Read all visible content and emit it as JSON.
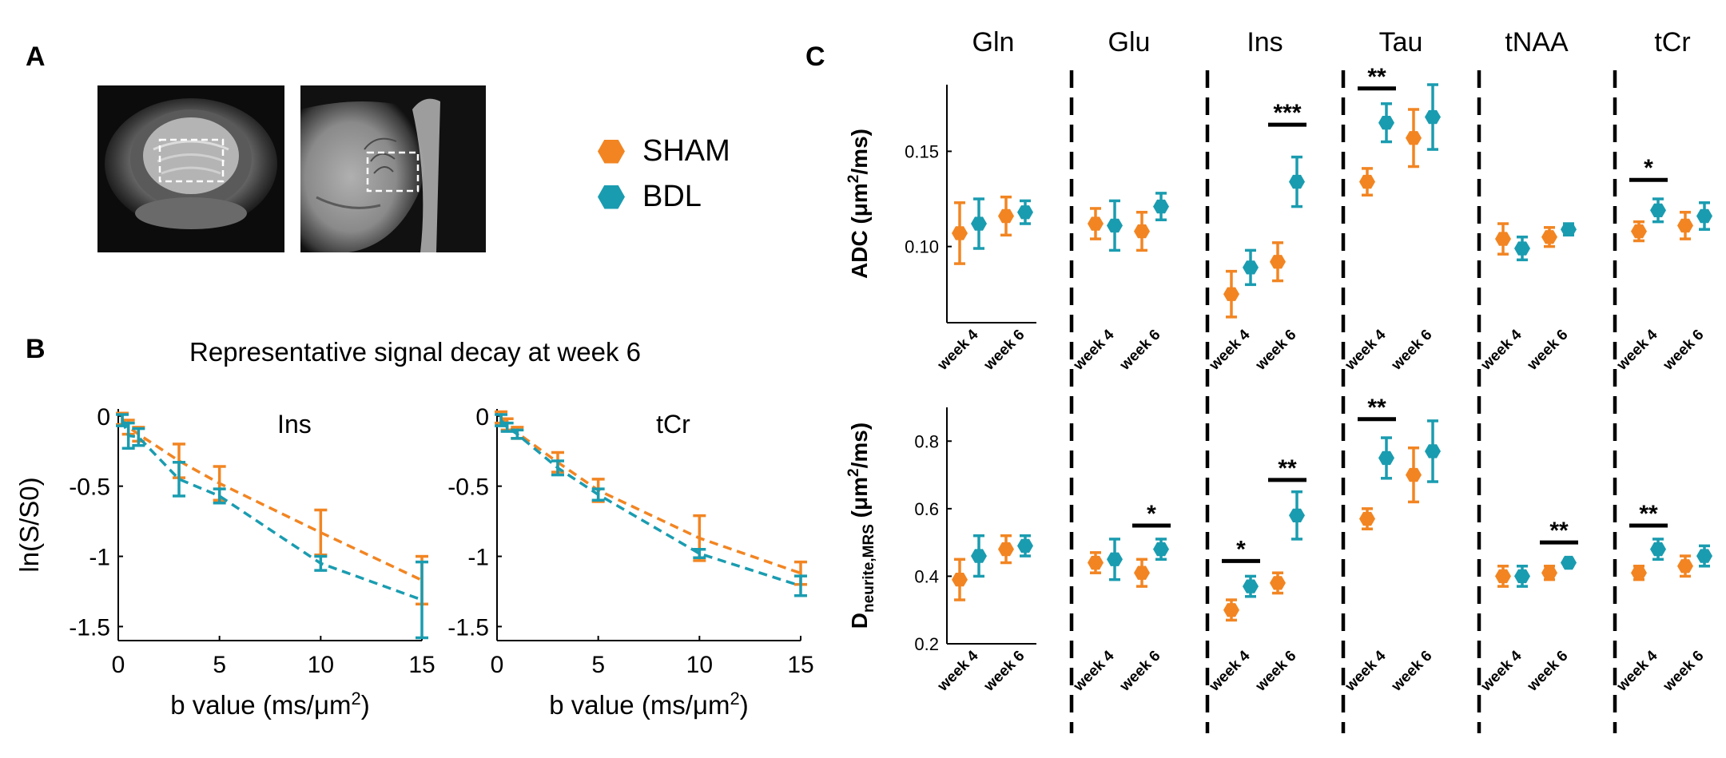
{
  "panel_labels": {
    "a": "A",
    "b": "B",
    "c": "C"
  },
  "legend": [
    {
      "label": "SHAM",
      "color": "#F28522"
    },
    {
      "label": "BDL",
      "color": "#1A9CB0"
    }
  ],
  "colors": {
    "sham": "#F28522",
    "bdl": "#1A9CB0"
  },
  "panel_a": {
    "images": [
      "brain-mri-coronal",
      "brain-mri-sagittal"
    ]
  },
  "panel_b_title": "Representative signal decay at week 6",
  "chart_data": [
    {
      "id": "decay-ins",
      "type": "line",
      "title": "Ins",
      "xlabel": "b value (ms/μm",
      "xlabel_sup": "2",
      "xlabel_end": ")",
      "ylabel": "ln(S/S0)",
      "xlim": [
        0,
        15
      ],
      "ylim": [
        -1.6,
        0.05
      ],
      "xticks": [
        0,
        5,
        10,
        15
      ],
      "xtick_labels": [
        "0",
        "5",
        "10",
        "15"
      ],
      "yticks": [
        0,
        -0.5,
        -1,
        -1.5
      ],
      "ytick_labels": [
        "0",
        "-0.5",
        "-1",
        "-1.5"
      ],
      "x": [
        0.2,
        0.5,
        1,
        3,
        5,
        10,
        15
      ],
      "series": [
        {
          "name": "SHAM",
          "y": [
            -0.02,
            -0.08,
            -0.13,
            -0.32,
            -0.48,
            -0.83,
            -1.17
          ],
          "err": [
            0.04,
            0.05,
            0.05,
            0.12,
            0.12,
            0.16,
            0.17
          ]
        },
        {
          "name": "BDL",
          "y": [
            -0.03,
            -0.14,
            -0.15,
            -0.45,
            -0.57,
            -1.05,
            -1.31
          ],
          "err": [
            0.04,
            0.09,
            0.06,
            0.12,
            0.05,
            0.05,
            0.27
          ]
        }
      ]
    },
    {
      "id": "decay-tcr",
      "type": "line",
      "title": "tCr",
      "xlabel": "b value (ms/μm",
      "xlabel_sup": "2",
      "xlabel_end": ")",
      "ylabel": "",
      "xlim": [
        0,
        15
      ],
      "ylim": [
        -1.6,
        0.05
      ],
      "xticks": [
        0,
        5,
        10,
        15
      ],
      "xtick_labels": [
        "0",
        "5",
        "10",
        "15"
      ],
      "yticks": [
        0,
        -0.5,
        -1,
        -1.5
      ],
      "ytick_labels": [
        "0",
        "-0.5",
        "-1",
        "-1.5"
      ],
      "x": [
        0.2,
        0.5,
        1,
        3,
        5,
        10,
        15
      ],
      "series": [
        {
          "name": "SHAM",
          "y": [
            -0.01,
            -0.06,
            -0.12,
            -0.33,
            -0.53,
            -0.87,
            -1.12
          ],
          "err": [
            0.04,
            0.04,
            0.04,
            0.07,
            0.08,
            0.16,
            0.08
          ]
        },
        {
          "name": "BDL",
          "y": [
            -0.03,
            -0.08,
            -0.13,
            -0.37,
            -0.56,
            -0.98,
            -1.21
          ],
          "err": [
            0.04,
            0.03,
            0.03,
            0.05,
            0.04,
            0.03,
            0.07
          ]
        }
      ]
    },
    {
      "id": "adc",
      "type": "scatter",
      "ylabel": "ADC (μm",
      "ylabel_sup": "2",
      "ylabel_end": "/ms)",
      "ylim": [
        0.06,
        0.185
      ],
      "yticks": [
        0.1,
        0.15
      ],
      "ytick_labels": [
        "0.10",
        "0.15"
      ],
      "group_labels": [
        "week 4",
        "week 6"
      ],
      "metabolites": [
        {
          "name": "Gln",
          "sham": [
            [
              0.107,
              0.016
            ],
            [
              0.116,
              0.01
            ]
          ],
          "bdl": [
            [
              0.112,
              0.013
            ],
            [
              0.118,
              0.006
            ]
          ],
          "sig": []
        },
        {
          "name": "Glu",
          "sham": [
            [
              0.112,
              0.008
            ],
            [
              0.108,
              0.01
            ]
          ],
          "bdl": [
            [
              0.111,
              0.013
            ],
            [
              0.121,
              0.007
            ]
          ],
          "sig": []
        },
        {
          "name": "Ins",
          "sham": [
            [
              0.075,
              0.012
            ],
            [
              0.092,
              0.01
            ]
          ],
          "bdl": [
            [
              0.089,
              0.009
            ],
            [
              0.134,
              0.013
            ]
          ],
          "sig": [
            {
              "week": 1,
              "label": "***",
              "y": 0.164
            }
          ]
        },
        {
          "name": "Tau",
          "sham": [
            [
              0.134,
              0.007
            ],
            [
              0.157,
              0.015
            ]
          ],
          "bdl": [
            [
              0.165,
              0.01
            ],
            [
              0.168,
              0.017
            ]
          ],
          "sig": [
            {
              "week": 0,
              "label": "**",
              "y": 0.183
            }
          ]
        },
        {
          "name": "tNAA",
          "sham": [
            [
              0.104,
              0.008
            ],
            [
              0.105,
              0.005
            ]
          ],
          "bdl": [
            [
              0.099,
              0.006
            ],
            [
              0.109,
              0.003
            ]
          ],
          "sig": []
        },
        {
          "name": "tCr",
          "sham": [
            [
              0.108,
              0.005
            ],
            [
              0.111,
              0.007
            ]
          ],
          "bdl": [
            [
              0.119,
              0.006
            ],
            [
              0.116,
              0.007
            ]
          ],
          "sig": [
            {
              "week": 0,
              "label": "*",
              "y": 0.135
            }
          ]
        }
      ]
    },
    {
      "id": "dneurite",
      "type": "scatter",
      "ylabel": "D",
      "ylabel_sub": "neurite,MRS",
      "ylabel_mid": " (μm",
      "ylabel_sup": "2",
      "ylabel_end": "/ms)",
      "ylim": [
        0.2,
        0.9
      ],
      "yticks": [
        0.2,
        0.4,
        0.6,
        0.8
      ],
      "ytick_labels": [
        "0.2",
        "0.4",
        "0.6",
        "0.8"
      ],
      "group_labels": [
        "week 4",
        "week 6"
      ],
      "metabolites": [
        {
          "name": "Gln",
          "sham": [
            [
              0.39,
              0.06
            ],
            [
              0.48,
              0.04
            ]
          ],
          "bdl": [
            [
              0.46,
              0.06
            ],
            [
              0.49,
              0.03
            ]
          ],
          "sig": []
        },
        {
          "name": "Glu",
          "sham": [
            [
              0.44,
              0.03
            ],
            [
              0.41,
              0.04
            ]
          ],
          "bdl": [
            [
              0.45,
              0.06
            ],
            [
              0.48,
              0.03
            ]
          ],
          "sig": [
            {
              "week": 1,
              "label": "*",
              "y": 0.55
            }
          ]
        },
        {
          "name": "Ins",
          "sham": [
            [
              0.3,
              0.03
            ],
            [
              0.38,
              0.03
            ]
          ],
          "bdl": [
            [
              0.37,
              0.03
            ],
            [
              0.58,
              0.07
            ]
          ],
          "sig": [
            {
              "week": 0,
              "label": "*",
              "y": 0.445
            },
            {
              "week": 1,
              "label": "**",
              "y": 0.685
            }
          ]
        },
        {
          "name": "Tau",
          "sham": [
            [
              0.57,
              0.03
            ],
            [
              0.7,
              0.08
            ]
          ],
          "bdl": [
            [
              0.75,
              0.06
            ],
            [
              0.77,
              0.09
            ]
          ],
          "sig": [
            {
              "week": 0,
              "label": "**",
              "y": 0.865
            }
          ]
        },
        {
          "name": "tNAA",
          "sham": [
            [
              0.4,
              0.03
            ],
            [
              0.41,
              0.02
            ]
          ],
          "bdl": [
            [
              0.4,
              0.03
            ],
            [
              0.44,
              0.01
            ]
          ],
          "sig": [
            {
              "week": 1,
              "label": "**",
              "y": 0.5
            }
          ]
        },
        {
          "name": "tCr",
          "sham": [
            [
              0.41,
              0.02
            ],
            [
              0.43,
              0.03
            ]
          ],
          "bdl": [
            [
              0.48,
              0.03
            ],
            [
              0.46,
              0.03
            ]
          ],
          "sig": [
            {
              "week": 0,
              "label": "**",
              "y": 0.55
            }
          ]
        }
      ]
    }
  ]
}
